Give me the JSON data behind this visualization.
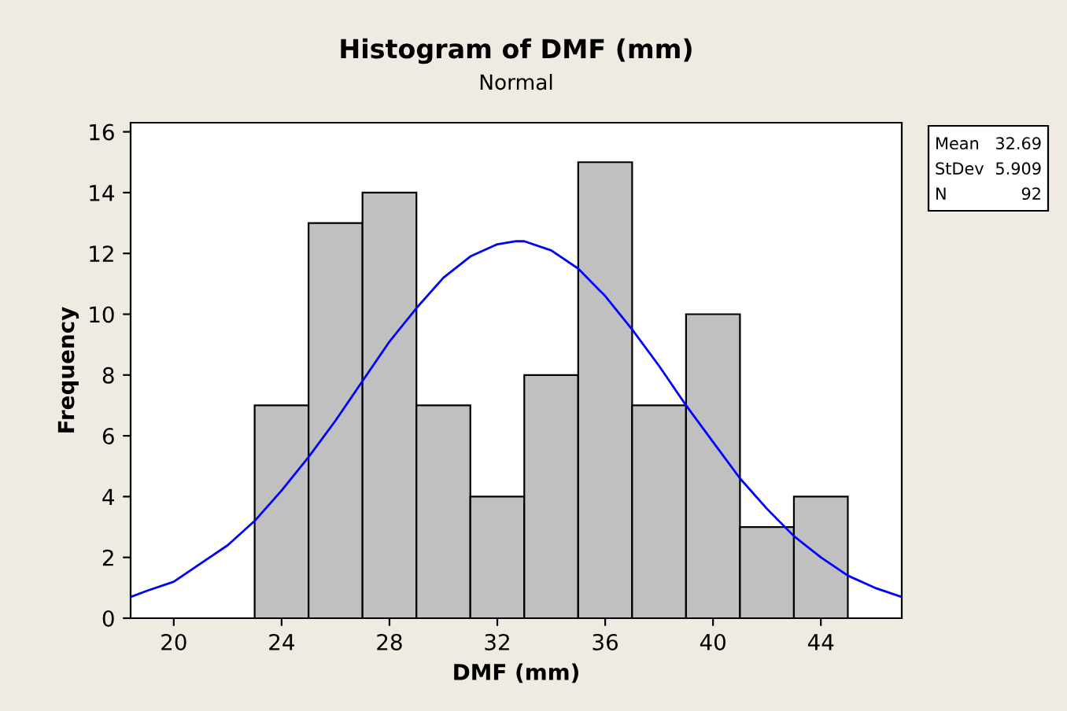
{
  "chart_data": {
    "type": "histogram",
    "title": "Histogram of DMF (mm)",
    "subtitle": "Normal",
    "xlabel": "DMF (mm)",
    "ylabel": "Frequency",
    "bins": [
      23,
      25,
      27,
      29,
      31,
      33,
      35,
      37,
      39,
      41,
      43,
      45
    ],
    "values": [
      7,
      13,
      14,
      7,
      4,
      8,
      15,
      7,
      10,
      3,
      4
    ],
    "color": "#c0c0c0",
    "series": [
      {
        "type": "line",
        "color": "#0000ff",
        "x": [
          18.4,
          19,
          20,
          21,
          22,
          23,
          24,
          25,
          26,
          27,
          28,
          29,
          30,
          31,
          32,
          32.7,
          33,
          34,
          35,
          36,
          37,
          38,
          39,
          40,
          41,
          42,
          43,
          44,
          45,
          46,
          47
        ],
        "values": [
          0.7,
          0.9,
          1.2,
          1.8,
          2.4,
          3.2,
          4.2,
          5.3,
          6.5,
          7.8,
          9.1,
          10.2,
          11.2,
          11.9,
          12.3,
          12.4,
          12.4,
          12.1,
          11.5,
          10.6,
          9.5,
          8.3,
          7.0,
          5.8,
          4.6,
          3.6,
          2.7,
          2.0,
          1.4,
          1.0,
          0.7
        ]
      }
    ],
    "xlim": [
      18.4,
      47
    ],
    "ylim": [
      0,
      16.3
    ],
    "xticks": [
      20,
      24,
      28,
      32,
      36,
      40,
      44
    ],
    "yticks": [
      0,
      2,
      4,
      6,
      8,
      10,
      12,
      14,
      16
    ],
    "grid": false,
    "legend": false,
    "annotations": [
      "Mean 32.69",
      "StDev 5.909",
      "N 92"
    ]
  }
}
